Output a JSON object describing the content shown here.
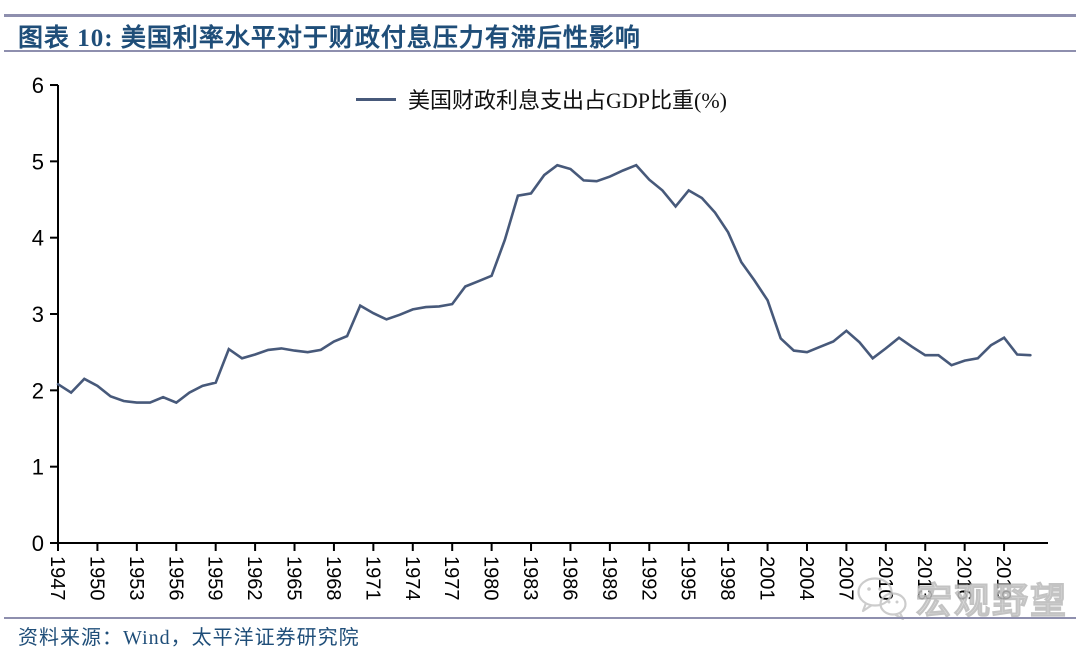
{
  "header": {
    "title": "图表 10:  美国利率水平对于财政付息压力有滞后性影响"
  },
  "chart_data": {
    "type": "line",
    "legend": "美国财政利息支出占GDP比重(%)",
    "line_color": "#47597A",
    "axis_color": "#000000",
    "ylim": [
      0,
      6
    ],
    "y_ticks": [
      0,
      1,
      2,
      3,
      4,
      5,
      6
    ],
    "x_tick_labels": [
      "1947",
      "1950",
      "1953",
      "1956",
      "1959",
      "1962",
      "1965",
      "1968",
      "1971",
      "1974",
      "1977",
      "1980",
      "1983",
      "1986",
      "1989",
      "1992",
      "1995",
      "1998",
      "2001",
      "2004",
      "2007",
      "2010",
      "2013",
      "2016",
      "2019"
    ],
    "grid": false,
    "legend_position": "top-center",
    "years": [
      1947,
      1948,
      1949,
      1950,
      1951,
      1952,
      1953,
      1954,
      1955,
      1956,
      1957,
      1958,
      1959,
      1960,
      1961,
      1962,
      1963,
      1964,
      1965,
      1966,
      1967,
      1968,
      1969,
      1970,
      1971,
      1972,
      1973,
      1974,
      1975,
      1976,
      1977,
      1978,
      1979,
      1980,
      1981,
      1982,
      1983,
      1984,
      1985,
      1986,
      1987,
      1988,
      1989,
      1990,
      1991,
      1992,
      1993,
      1994,
      1995,
      1996,
      1997,
      1998,
      1999,
      2000,
      2001,
      2002,
      2003,
      2004,
      2005,
      2006,
      2007,
      2008,
      2009,
      2010,
      2011,
      2012,
      2013,
      2014,
      2015,
      2016,
      2017,
      2018,
      2019,
      2020,
      2021
    ],
    "values": [
      2.08,
      1.97,
      2.15,
      2.06,
      1.92,
      1.86,
      1.84,
      1.84,
      1.91,
      1.84,
      1.97,
      2.06,
      2.1,
      2.54,
      2.42,
      2.47,
      2.53,
      2.55,
      2.52,
      2.5,
      2.53,
      2.64,
      2.71,
      3.11,
      3.01,
      2.93,
      2.99,
      3.06,
      3.09,
      3.1,
      3.13,
      3.36,
      3.43,
      3.5,
      3.97,
      4.55,
      4.58,
      4.82,
      4.95,
      4.9,
      4.75,
      4.74,
      4.8,
      4.88,
      4.95,
      4.76,
      4.62,
      4.41,
      4.62,
      4.52,
      4.33,
      4.07,
      3.68,
      3.44,
      3.18,
      2.68,
      2.52,
      2.5,
      2.57,
      2.64,
      2.78,
      2.63,
      2.42,
      2.55,
      2.69,
      2.57,
      2.46,
      2.46,
      2.33,
      2.39,
      2.42,
      2.59,
      2.69,
      2.47,
      2.46
    ]
  },
  "footer": {
    "source": "资料来源：Wind，太平洋证券研究院"
  },
  "watermark": {
    "icon": "wechat-icon",
    "text": "宏观野望"
  }
}
